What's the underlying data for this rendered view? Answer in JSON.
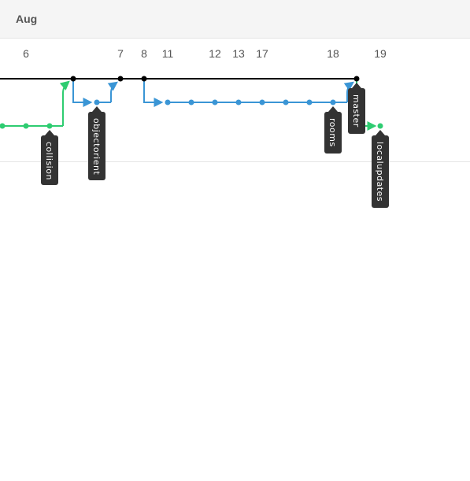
{
  "header": {
    "month": "Aug"
  },
  "timeline": {
    "days": [
      "6",
      "7",
      "8",
      "11",
      "12",
      "13",
      "17",
      "18",
      "19"
    ]
  },
  "colors": {
    "master": "#000000",
    "feature_blue": "#3a95d5",
    "feature_green": "#2ecc71",
    "tag_bg": "#333333",
    "header_bg": "#f5f5f5"
  },
  "branches": {
    "master": "master",
    "objectorient": "objectorient",
    "rooms": "rooms",
    "collision": "collision",
    "localupdates": "localupdates"
  }
}
